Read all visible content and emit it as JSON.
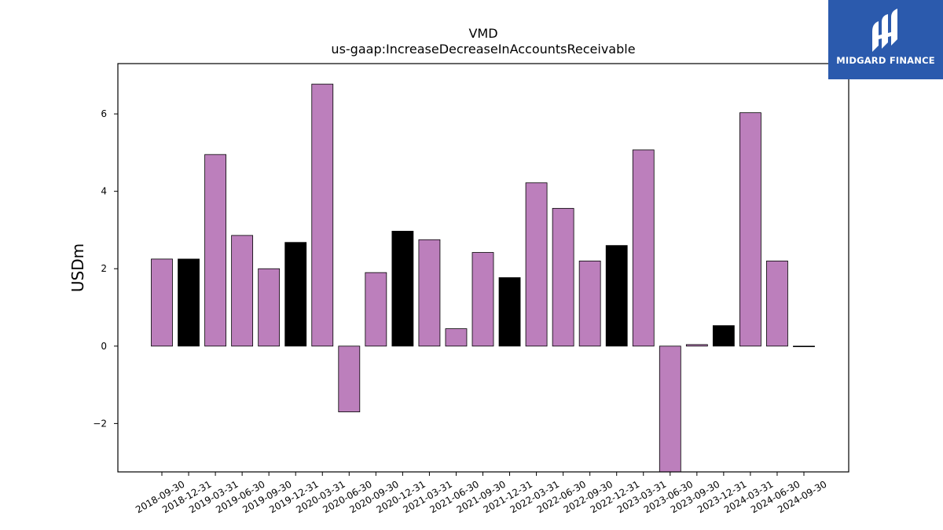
{
  "logo": {
    "text": "MIDGARD FINANCE",
    "icon": "midgard-logo-icon",
    "color": "#2b5aad"
  },
  "chart_data": {
    "type": "bar",
    "title": "VMD",
    "subtitle": "us-gaap:IncreaseDecreaseInAccountsReceivable",
    "xlabel": "",
    "ylabel": "USDm",
    "ylim": [
      -3.25,
      7.3
    ],
    "yticks": [
      -2,
      0,
      2,
      4,
      6
    ],
    "ytick_labels": [
      "−2",
      "0",
      "2",
      "4",
      "6"
    ],
    "grid": false,
    "colors": {
      "quarter": "#bc7fbc",
      "year_end": "#000000"
    },
    "categories": [
      "2018-09-30",
      "2018-12-31",
      "2019-03-31",
      "2019-06-30",
      "2019-09-30",
      "2019-12-31",
      "2020-03-31",
      "2020-06-30",
      "2020-09-30",
      "2020-12-31",
      "2021-03-31",
      "2021-06-30",
      "2021-09-30",
      "2021-12-31",
      "2022-03-31",
      "2022-06-30",
      "2022-09-30",
      "2022-12-31",
      "2023-03-31",
      "2023-06-30",
      "2023-09-30",
      "2023-12-31",
      "2024-03-31",
      "2024-06-30",
      "2024-09-30"
    ],
    "values": [
      2.25,
      2.25,
      4.95,
      2.86,
      2.0,
      2.68,
      6.77,
      -1.7,
      1.9,
      2.97,
      2.75,
      0.45,
      2.42,
      1.77,
      4.22,
      3.56,
      2.2,
      2.6,
      5.07,
      -3.25,
      0.04,
      0.53,
      6.03,
      2.2,
      0.0
    ]
  }
}
